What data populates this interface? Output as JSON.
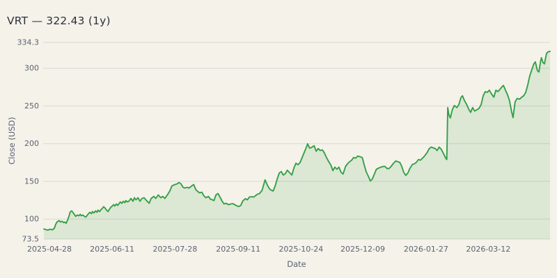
{
  "page": {
    "title": "VRT — 322.43 (1y)"
  },
  "colors": {
    "background": "#f5f2ea",
    "line": "#34a047",
    "area": "rgba(52,160,71,0.13)",
    "grid": "#d9d8d2",
    "title_text": "#2c313c",
    "tick_text": "#5a6270"
  },
  "chart_data": {
    "type": "area",
    "title": "VRT — 322.43 (1y)",
    "symbol": "VRT",
    "last_close": 322.43,
    "period": "1y",
    "xlabel": "Date",
    "ylabel": "Close (USD)",
    "ylim": [
      73.5,
      334.3
    ],
    "grid": true,
    "legend": "none",
    "y_ticks": [
      {
        "value": 334.3,
        "label": "334.3"
      },
      {
        "value": 300,
        "label": "300"
      },
      {
        "value": 250,
        "label": "250"
      },
      {
        "value": 200,
        "label": "200"
      },
      {
        "value": 150,
        "label": "150"
      },
      {
        "value": 100,
        "label": "100"
      },
      {
        "value": 73.5,
        "label": "73.5"
      }
    ],
    "x_ticks": [
      {
        "pos": 0.011,
        "label": "2025-04-28"
      },
      {
        "pos": 0.135,
        "label": "2025-06-11"
      },
      {
        "pos": 0.259,
        "label": "2025-07-28"
      },
      {
        "pos": 0.384,
        "label": "2025-09-11"
      },
      {
        "pos": 0.508,
        "label": "2025-10-24"
      },
      {
        "pos": 0.63,
        "label": "2025-12-09"
      },
      {
        "pos": 0.755,
        "label": "2026-01-27"
      },
      {
        "pos": 0.878,
        "label": "2026-03-12"
      }
    ],
    "series": [
      {
        "name": "Close",
        "points": [
          [
            0.0,
            86.9
          ],
          [
            0.004,
            86.0
          ],
          [
            0.008,
            85.4
          ],
          [
            0.012,
            86.6
          ],
          [
            0.017,
            85.8
          ],
          [
            0.021,
            88.2
          ],
          [
            0.023,
            92.6
          ],
          [
            0.026,
            96.2
          ],
          [
            0.03,
            98.1
          ],
          [
            0.033,
            96.2
          ],
          [
            0.036,
            97.2
          ],
          [
            0.039,
            95.3
          ],
          [
            0.041,
            96.2
          ],
          [
            0.044,
            94.4
          ],
          [
            0.047,
            99.0
          ],
          [
            0.05,
            104.5
          ],
          [
            0.052,
            109.5
          ],
          [
            0.055,
            110.9
          ],
          [
            0.058,
            108.2
          ],
          [
            0.061,
            105.4
          ],
          [
            0.063,
            103.6
          ],
          [
            0.066,
            105.4
          ],
          [
            0.069,
            104.5
          ],
          [
            0.072,
            106.3
          ],
          [
            0.074,
            104.5
          ],
          [
            0.077,
            105.4
          ],
          [
            0.08,
            103.6
          ],
          [
            0.083,
            102.7
          ],
          [
            0.085,
            104.5
          ],
          [
            0.088,
            107.2
          ],
          [
            0.091,
            109.1
          ],
          [
            0.094,
            107.2
          ],
          [
            0.096,
            110.0
          ],
          [
            0.099,
            108.2
          ],
          [
            0.102,
            110.9
          ],
          [
            0.105,
            109.1
          ],
          [
            0.107,
            111.8
          ],
          [
            0.11,
            110.0
          ],
          [
            0.113,
            112.7
          ],
          [
            0.116,
            114.6
          ],
          [
            0.118,
            116.4
          ],
          [
            0.121,
            114.6
          ],
          [
            0.124,
            111.8
          ],
          [
            0.127,
            110.0
          ],
          [
            0.129,
            112.7
          ],
          [
            0.132,
            115.5
          ],
          [
            0.135,
            117.3
          ],
          [
            0.138,
            119.2
          ],
          [
            0.14,
            117.3
          ],
          [
            0.143,
            120.0
          ],
          [
            0.146,
            118.2
          ],
          [
            0.149,
            120.9
          ],
          [
            0.151,
            122.8
          ],
          [
            0.154,
            120.9
          ],
          [
            0.157,
            123.7
          ],
          [
            0.16,
            121.8
          ],
          [
            0.162,
            124.6
          ],
          [
            0.165,
            122.8
          ],
          [
            0.168,
            123.7
          ],
          [
            0.172,
            127.4
          ],
          [
            0.176,
            123.7
          ],
          [
            0.179,
            128.3
          ],
          [
            0.182,
            125.6
          ],
          [
            0.186,
            128.3
          ],
          [
            0.19,
            123.7
          ],
          [
            0.194,
            127.4
          ],
          [
            0.198,
            128.3
          ],
          [
            0.204,
            123.7
          ],
          [
            0.208,
            121.0
          ],
          [
            0.212,
            127.4
          ],
          [
            0.217,
            130.1
          ],
          [
            0.221,
            127.4
          ],
          [
            0.226,
            132.0
          ],
          [
            0.231,
            128.3
          ],
          [
            0.235,
            130.1
          ],
          [
            0.239,
            127.4
          ],
          [
            0.245,
            133.0
          ],
          [
            0.249,
            137.5
          ],
          [
            0.253,
            144.0
          ],
          [
            0.259,
            145.8
          ],
          [
            0.263,
            146.7
          ],
          [
            0.267,
            148.5
          ],
          [
            0.271,
            146.7
          ],
          [
            0.275,
            142.2
          ],
          [
            0.279,
            141.2
          ],
          [
            0.283,
            142.2
          ],
          [
            0.287,
            141.2
          ],
          [
            0.292,
            144.0
          ],
          [
            0.296,
            145.8
          ],
          [
            0.3,
            139.4
          ],
          [
            0.304,
            136.5
          ],
          [
            0.308,
            134.8
          ],
          [
            0.312,
            135.7
          ],
          [
            0.316,
            131.1
          ],
          [
            0.32,
            128.3
          ],
          [
            0.325,
            130.1
          ],
          [
            0.329,
            126.5
          ],
          [
            0.333,
            125.6
          ],
          [
            0.336,
            124.6
          ],
          [
            0.34,
            132.1
          ],
          [
            0.344,
            133.9
          ],
          [
            0.348,
            129.2
          ],
          [
            0.352,
            124.0
          ],
          [
            0.356,
            120.1
          ],
          [
            0.36,
            121.0
          ],
          [
            0.365,
            119.1
          ],
          [
            0.369,
            120.0
          ],
          [
            0.373,
            120.5
          ],
          [
            0.377,
            119.1
          ],
          [
            0.381,
            117.6
          ],
          [
            0.385,
            116.6
          ],
          [
            0.389,
            118.1
          ],
          [
            0.393,
            124.0
          ],
          [
            0.398,
            127.0
          ],
          [
            0.402,
            125.6
          ],
          [
            0.406,
            129.2
          ],
          [
            0.41,
            129.7
          ],
          [
            0.414,
            129.2
          ],
          [
            0.418,
            131.0
          ],
          [
            0.422,
            133.0
          ],
          [
            0.426,
            133.9
          ],
          [
            0.431,
            138.0
          ],
          [
            0.435,
            147.0
          ],
          [
            0.437,
            152.0
          ],
          [
            0.442,
            144.5
          ],
          [
            0.446,
            139.9
          ],
          [
            0.45,
            138.1
          ],
          [
            0.453,
            137.2
          ],
          [
            0.457,
            144.0
          ],
          [
            0.461,
            153.0
          ],
          [
            0.465,
            161.1
          ],
          [
            0.469,
            163.0
          ],
          [
            0.473,
            158.4
          ],
          [
            0.477,
            160.2
          ],
          [
            0.481,
            164.8
          ],
          [
            0.486,
            161.1
          ],
          [
            0.49,
            158.4
          ],
          [
            0.494,
            167.6
          ],
          [
            0.498,
            174.0
          ],
          [
            0.502,
            172.2
          ],
          [
            0.506,
            174.9
          ],
          [
            0.51,
            181.3
          ],
          [
            0.514,
            187.8
          ],
          [
            0.519,
            196.0
          ],
          [
            0.521,
            199.8
          ],
          [
            0.525,
            194.0
          ],
          [
            0.53,
            195.5
          ],
          [
            0.534,
            197.3
          ],
          [
            0.538,
            190.0
          ],
          [
            0.542,
            193.6
          ],
          [
            0.546,
            190.9
          ],
          [
            0.55,
            191.8
          ],
          [
            0.554,
            188.0
          ],
          [
            0.558,
            182.0
          ],
          [
            0.563,
            176.0
          ],
          [
            0.567,
            171.6
          ],
          [
            0.571,
            164.3
          ],
          [
            0.575,
            168.9
          ],
          [
            0.579,
            166.1
          ],
          [
            0.583,
            168.9
          ],
          [
            0.587,
            162.4
          ],
          [
            0.591,
            159.7
          ],
          [
            0.596,
            169.8
          ],
          [
            0.6,
            173.4
          ],
          [
            0.604,
            176.2
          ],
          [
            0.608,
            178.0
          ],
          [
            0.612,
            181.7
          ],
          [
            0.616,
            180.8
          ],
          [
            0.62,
            183.5
          ],
          [
            0.625,
            182.6
          ],
          [
            0.629,
            181.7
          ],
          [
            0.633,
            171.6
          ],
          [
            0.637,
            162.4
          ],
          [
            0.641,
            156.9
          ],
          [
            0.645,
            150.5
          ],
          [
            0.649,
            153.3
          ],
          [
            0.653,
            159.7
          ],
          [
            0.657,
            166.1
          ],
          [
            0.662,
            167.9
          ],
          [
            0.666,
            168.9
          ],
          [
            0.67,
            169.8
          ],
          [
            0.674,
            169.8
          ],
          [
            0.678,
            167.0
          ],
          [
            0.682,
            167.0
          ],
          [
            0.686,
            169.8
          ],
          [
            0.69,
            173.4
          ],
          [
            0.695,
            177.1
          ],
          [
            0.699,
            176.2
          ],
          [
            0.703,
            175.3
          ],
          [
            0.707,
            170.0
          ],
          [
            0.711,
            162.0
          ],
          [
            0.715,
            158.0
          ],
          [
            0.719,
            161.0
          ],
          [
            0.723,
            167.0
          ],
          [
            0.728,
            172.5
          ],
          [
            0.732,
            173.4
          ],
          [
            0.736,
            175.3
          ],
          [
            0.74,
            179.0
          ],
          [
            0.744,
            178.1
          ],
          [
            0.748,
            180.8
          ],
          [
            0.752,
            183.5
          ],
          [
            0.757,
            188.0
          ],
          [
            0.761,
            193.0
          ],
          [
            0.765,
            195.5
          ],
          [
            0.769,
            194.5
          ],
          [
            0.773,
            193.6
          ],
          [
            0.777,
            190.9
          ],
          [
            0.781,
            195.5
          ],
          [
            0.785,
            192.7
          ],
          [
            0.79,
            186.3
          ],
          [
            0.794,
            180.8
          ],
          [
            0.796,
            179.0
          ],
          [
            0.798,
            247.9
          ],
          [
            0.8,
            238.8
          ],
          [
            0.803,
            234.2
          ],
          [
            0.807,
            245.2
          ],
          [
            0.811,
            250.6
          ],
          [
            0.816,
            247.9
          ],
          [
            0.82,
            252.0
          ],
          [
            0.824,
            261.0
          ],
          [
            0.827,
            263.5
          ],
          [
            0.831,
            257.1
          ],
          [
            0.835,
            252.5
          ],
          [
            0.839,
            246.1
          ],
          [
            0.843,
            241.5
          ],
          [
            0.847,
            247.9
          ],
          [
            0.851,
            243.3
          ],
          [
            0.856,
            245.1
          ],
          [
            0.86,
            247.0
          ],
          [
            0.864,
            252.0
          ],
          [
            0.868,
            263.5
          ],
          [
            0.872,
            269.0
          ],
          [
            0.876,
            268.1
          ],
          [
            0.88,
            270.9
          ],
          [
            0.884,
            266.3
          ],
          [
            0.889,
            261.7
          ],
          [
            0.893,
            270.9
          ],
          [
            0.897,
            269.0
          ],
          [
            0.901,
            272.0
          ],
          [
            0.905,
            275.4
          ],
          [
            0.908,
            277.3
          ],
          [
            0.912,
            270.9
          ],
          [
            0.916,
            265.0
          ],
          [
            0.92,
            257.0
          ],
          [
            0.924,
            243.0
          ],
          [
            0.927,
            234.5
          ],
          [
            0.931,
            255.3
          ],
          [
            0.935,
            259.9
          ],
          [
            0.94,
            259.0
          ],
          [
            0.944,
            261.7
          ],
          [
            0.948,
            263.5
          ],
          [
            0.952,
            268.0
          ],
          [
            0.956,
            278.0
          ],
          [
            0.96,
            290.0
          ],
          [
            0.964,
            298.0
          ],
          [
            0.968,
            305.8
          ],
          [
            0.971,
            308.5
          ],
          [
            0.975,
            297.0
          ],
          [
            0.978,
            295.0
          ],
          [
            0.981,
            308.0
          ],
          [
            0.983,
            314.0
          ],
          [
            0.986,
            307.6
          ],
          [
            0.989,
            305.8
          ],
          [
            0.993,
            319.6
          ],
          [
            0.996,
            321.8
          ],
          [
            1.0,
            322.43
          ]
        ]
      }
    ]
  }
}
